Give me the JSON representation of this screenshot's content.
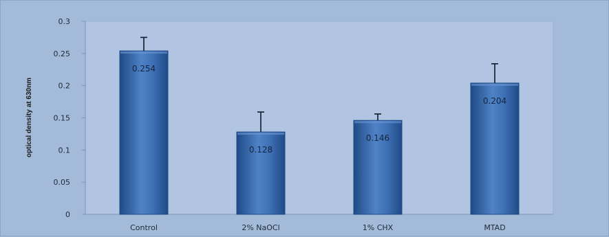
{
  "chart_data": {
    "type": "bar",
    "title": "",
    "xlabel": "",
    "ylabel": "optical density at 630nm",
    "categories": [
      "Control",
      "2% NaOCl",
      "1% CHX",
      "MTAD"
    ],
    "values": [
      0.254,
      0.128,
      0.146,
      0.204
    ],
    "data_labels": [
      "0.254",
      "0.128",
      "0.146",
      "0.204"
    ],
    "error_upper": [
      0.275,
      0.159,
      0.156,
      0.234
    ],
    "ylim": [
      0,
      0.3
    ],
    "yticks": [
      0,
      0.05,
      0.1,
      0.15,
      0.2,
      0.25,
      0.3
    ],
    "ytick_labels": [
      "0",
      "0.05",
      "0.1",
      "0.15",
      "0.2",
      "0.25",
      "0.3"
    ],
    "grid": false,
    "legend": "none",
    "colors": {
      "bar": "#3d6fb4",
      "bar_dark": "#1f4a86",
      "bar_light": "#6d98d3",
      "plot_area": "#b1c5e2",
      "background": "#a3bad8"
    }
  }
}
